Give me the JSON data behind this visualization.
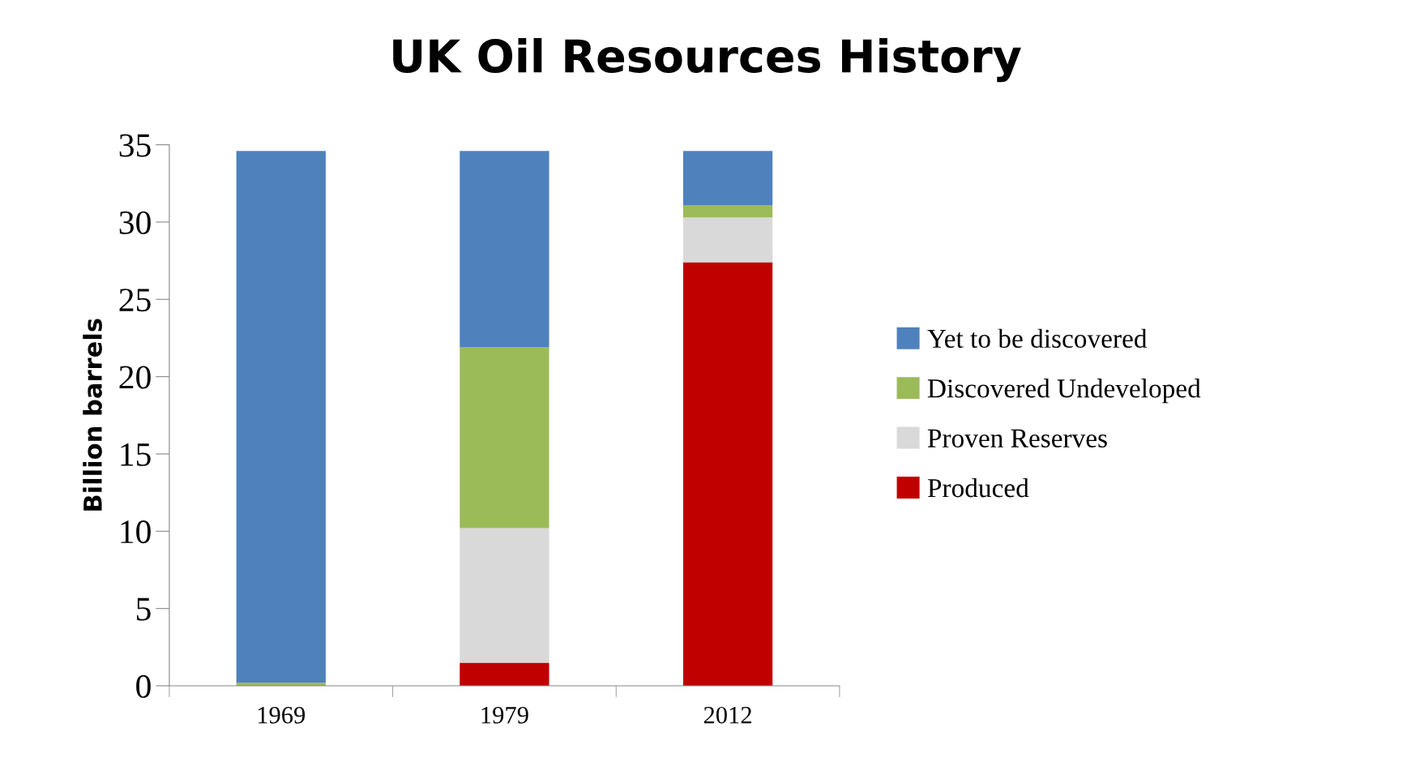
{
  "chart_data": {
    "type": "bar",
    "title": "UK Oil Resources History",
    "ylabel": "Billion barrels",
    "categories": [
      "1969",
      "1979",
      "2012"
    ],
    "stacked": true,
    "series": [
      {
        "name": "Produced",
        "color": "#c00000",
        "values": [
          0,
          1.5,
          27.4
        ]
      },
      {
        "name": "Proven Reserves",
        "color": "#d9d9d9",
        "values": [
          0,
          8.7,
          2.9
        ]
      },
      {
        "name": "Discovered Undeveloped",
        "color": "#9bbb59",
        "values": [
          0.2,
          11.7,
          0.8
        ]
      },
      {
        "name": "Yet to be discovered",
        "color": "#4f81bd",
        "values": [
          34.4,
          12.7,
          3.5
        ]
      }
    ],
    "ylim": [
      0,
      35
    ],
    "yticks": [
      0,
      5,
      10,
      15,
      20,
      25,
      30,
      35
    ],
    "grid": false,
    "legend": "right"
  }
}
